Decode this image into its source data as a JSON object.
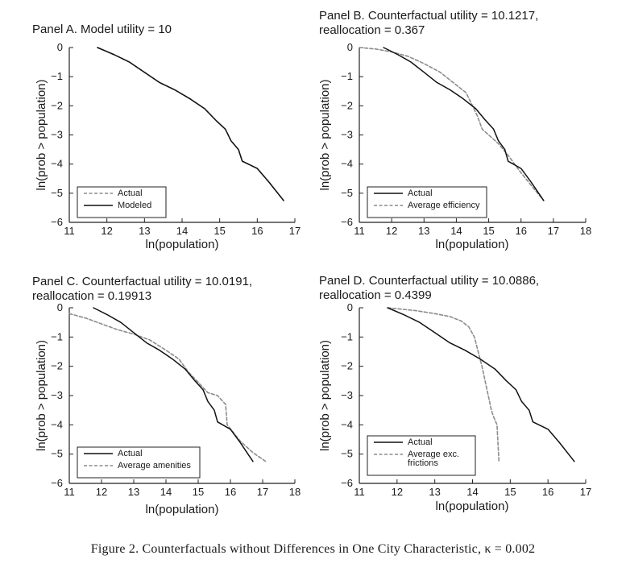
{
  "caption": "Figure 2. Counterfactuals without Differences in One City Characteristic, κ = 0.002",
  "styles": {
    "solid_color": "#111111",
    "dashed_color": "#8c8c8c"
  },
  "chart_data": [
    {
      "type": "line",
      "title": [
        "Panel A. Model utility = 10"
      ],
      "xlabel": "",
      "ylabel": "ln(prob > population)",
      "xlim": [
        11,
        17
      ],
      "ylim": [
        -6,
        0
      ],
      "xticks": [
        "11",
        "12",
        "13",
        "14",
        "15",
        "16",
        "17"
      ],
      "yticks": [
        "0",
        "−1",
        "−2",
        "−3",
        "−4",
        "−5",
        "−6"
      ],
      "legend": {
        "position": "bottom-left",
        "entries": [
          {
            "label": "Actual",
            "style": "dashed"
          },
          {
            "label": "Modeled",
            "style": "solid"
          }
        ]
      },
      "series": [
        {
          "name": "Modeled",
          "style": "solid",
          "x": [
            11.75,
            12.2,
            12.6,
            13.0,
            13.4,
            13.8,
            14.2,
            14.6,
            14.9,
            15.15,
            15.3,
            15.5,
            15.6,
            16.0,
            16.3,
            16.7
          ],
          "y": [
            0.0,
            -0.25,
            -0.5,
            -0.85,
            -1.2,
            -1.45,
            -1.75,
            -2.1,
            -2.5,
            -2.8,
            -3.2,
            -3.5,
            -3.9,
            -4.15,
            -4.6,
            -5.25
          ]
        },
        {
          "name": "Actual",
          "style": "dashed",
          "x": [
            11.75,
            12.2,
            12.6,
            13.0,
            13.4,
            13.8,
            14.2,
            14.6,
            14.9,
            15.15,
            15.3,
            15.5,
            15.6,
            16.0,
            16.3,
            16.7
          ],
          "y": [
            0.0,
            -0.25,
            -0.5,
            -0.85,
            -1.2,
            -1.45,
            -1.75,
            -2.1,
            -2.5,
            -2.8,
            -3.2,
            -3.5,
            -3.9,
            -4.15,
            -4.6,
            -5.25
          ]
        }
      ]
    },
    {
      "type": "line",
      "title": [
        "Panel B. Counterfactual utility = 10.1217,",
        "reallocation = 0.367"
      ],
      "xlabel": "ln(population)",
      "ylabel": "ln(prob > population)",
      "xlim": [
        11,
        18
      ],
      "ylim": [
        -6,
        0
      ],
      "xticks": [
        "11",
        "12",
        "13",
        "14",
        "15",
        "16",
        "17",
        "18"
      ],
      "yticks": [
        "0",
        "−1",
        "−2",
        "−3",
        "−4",
        "−5",
        "−6"
      ],
      "legend": {
        "position": "bottom-left",
        "entries": [
          {
            "label": "Actual",
            "style": "solid"
          },
          {
            "label": "Average efficiency",
            "style": "dashed"
          }
        ]
      },
      "series": [
        {
          "name": "Actual",
          "style": "solid",
          "x": [
            11.75,
            12.2,
            12.6,
            13.0,
            13.4,
            13.8,
            14.2,
            14.6,
            14.9,
            15.15,
            15.3,
            15.5,
            15.6,
            16.0,
            16.3,
            16.7
          ],
          "y": [
            0.0,
            -0.25,
            -0.5,
            -0.85,
            -1.2,
            -1.45,
            -1.75,
            -2.1,
            -2.5,
            -2.8,
            -3.2,
            -3.5,
            -3.9,
            -4.15,
            -4.6,
            -5.25
          ]
        },
        {
          "name": "Average efficiency",
          "style": "dashed",
          "x": [
            11.0,
            11.5,
            12.0,
            12.5,
            13.0,
            13.5,
            13.9,
            14.3,
            14.5,
            14.65,
            14.8,
            15.0,
            15.3,
            15.6,
            16.0,
            16.4,
            16.7
          ],
          "y": [
            0.0,
            -0.05,
            -0.15,
            -0.3,
            -0.55,
            -0.85,
            -1.2,
            -1.55,
            -2.0,
            -2.35,
            -2.8,
            -3.0,
            -3.3,
            -3.7,
            -4.3,
            -4.85,
            -5.25
          ]
        }
      ]
    },
    {
      "type": "line",
      "title": [
        "Panel C. Counterfactual utility = 10.0191,",
        "reallocation = 0.19913"
      ],
      "xlabel": "ln(population)",
      "ylabel": "ln(prob > population)",
      "xlim": [
        11,
        18
      ],
      "ylim": [
        -6,
        0
      ],
      "xticks": [
        "11",
        "12",
        "13",
        "14",
        "15",
        "16",
        "17",
        "18"
      ],
      "yticks": [
        "0",
        "−1",
        "−2",
        "−3",
        "−4",
        "−5",
        "−6"
      ],
      "legend": {
        "position": "bottom-left",
        "entries": [
          {
            "label": "Actual",
            "style": "solid"
          },
          {
            "label": "Average amenities",
            "style": "dashed"
          }
        ]
      },
      "series": [
        {
          "name": "Actual",
          "style": "solid",
          "x": [
            11.75,
            12.2,
            12.6,
            13.0,
            13.4,
            13.8,
            14.2,
            14.6,
            14.9,
            15.15,
            15.3,
            15.5,
            15.6,
            16.0,
            16.3,
            16.7
          ],
          "y": [
            0.0,
            -0.25,
            -0.5,
            -0.85,
            -1.2,
            -1.45,
            -1.75,
            -2.1,
            -2.5,
            -2.8,
            -3.2,
            -3.5,
            -3.9,
            -4.15,
            -4.6,
            -5.25
          ]
        },
        {
          "name": "Average amenities",
          "style": "dashed",
          "x": [
            11.0,
            11.5,
            12.0,
            12.5,
            13.0,
            13.5,
            14.0,
            14.4,
            14.7,
            15.0,
            15.3,
            15.6,
            15.85,
            15.9,
            16.3,
            16.7,
            17.1
          ],
          "y": [
            -0.2,
            -0.35,
            -0.55,
            -0.75,
            -0.9,
            -1.1,
            -1.45,
            -1.75,
            -2.2,
            -2.55,
            -2.9,
            -3.0,
            -3.3,
            -4.0,
            -4.55,
            -4.95,
            -5.25
          ]
        }
      ]
    },
    {
      "type": "line",
      "title": [
        "Panel D. Counterfactual utility = 10.0886,",
        "reallocation = 0.4399"
      ],
      "xlabel": "ln(population)",
      "ylabel": "ln(prob > population)",
      "xlim": [
        11,
        17
      ],
      "ylim": [
        -6,
        0
      ],
      "xticks": [
        "11",
        "12",
        "13",
        "14",
        "15",
        "16",
        "17"
      ],
      "yticks": [
        "0",
        "−1",
        "−2",
        "−3",
        "−4",
        "−5",
        "−6"
      ],
      "legend": {
        "position": "bottom-left",
        "entries": [
          {
            "label": "Actual",
            "style": "solid"
          },
          {
            "label": "Average exc. frictions",
            "style": "dashed"
          }
        ]
      },
      "series": [
        {
          "name": "Actual",
          "style": "solid",
          "x": [
            11.75,
            12.2,
            12.6,
            13.0,
            13.4,
            13.8,
            14.2,
            14.6,
            14.9,
            15.15,
            15.3,
            15.5,
            15.6,
            16.0,
            16.3,
            16.7
          ],
          "y": [
            0.0,
            -0.25,
            -0.5,
            -0.85,
            -1.2,
            -1.45,
            -1.75,
            -2.1,
            -2.5,
            -2.8,
            -3.2,
            -3.5,
            -3.9,
            -4.15,
            -4.6,
            -5.25
          ]
        },
        {
          "name": "Average exc. frictions",
          "style": "dashed",
          "x": [
            11.75,
            12.5,
            13.0,
            13.4,
            13.7,
            13.9,
            14.05,
            14.15,
            14.25,
            14.35,
            14.45,
            14.5,
            14.55,
            14.65,
            14.7
          ],
          "y": [
            0.0,
            -0.1,
            -0.2,
            -0.3,
            -0.45,
            -0.65,
            -1.0,
            -1.5,
            -2.0,
            -2.6,
            -3.2,
            -3.5,
            -3.7,
            -4.0,
            -5.25
          ]
        }
      ]
    }
  ]
}
